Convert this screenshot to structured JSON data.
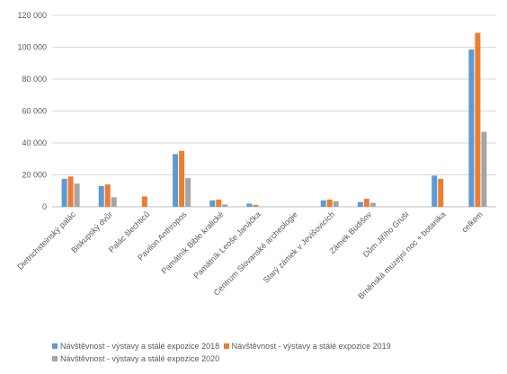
{
  "chart_data": {
    "type": "bar",
    "categories": [
      "Dietrichsteinský palác",
      "Biskupský dvůr",
      "Palác šlechticů",
      "Pavilon Anthropos",
      "Památník Bible kralické",
      "Památník Leoše Janáčka",
      "Centrum Slovanské archeologie",
      "Starý zámek v Jevišovicích",
      "Zámek Budišov",
      "Dům Jiřího Gruši",
      "Brněnská muzejní noc + botanika",
      "celkem"
    ],
    "series": [
      {
        "name": "Návštěvnost - výstavy  a stálé expozice 2018",
        "color": "#5b9bd5",
        "values": [
          17500,
          13000,
          0,
          33000,
          4000,
          2000,
          0,
          4000,
          3000,
          0,
          19500,
          98500
        ]
      },
      {
        "name": "Návštěvnost - výstavy  a stálé expozice 2019",
        "color": "#ed7d31",
        "values": [
          19000,
          14000,
          6500,
          35000,
          4500,
          1200,
          0,
          4500,
          5000,
          0,
          17500,
          109000
        ]
      },
      {
        "name": "Návštěvnost - výstavy  a stálé expozice 2020",
        "color": "#a5a5a5",
        "values": [
          14500,
          6000,
          0,
          18000,
          1500,
          200,
          0,
          3500,
          2500,
          0,
          0,
          47000
        ]
      }
    ],
    "yticks": [
      "0",
      "20 000",
      "40 000",
      "60 000",
      "80 000",
      "100 000",
      "120 000"
    ],
    "ylim": [
      0,
      120000
    ],
    "grid": true,
    "legend": "bottom",
    "title": "",
    "xlabel": "",
    "ylabel": ""
  }
}
